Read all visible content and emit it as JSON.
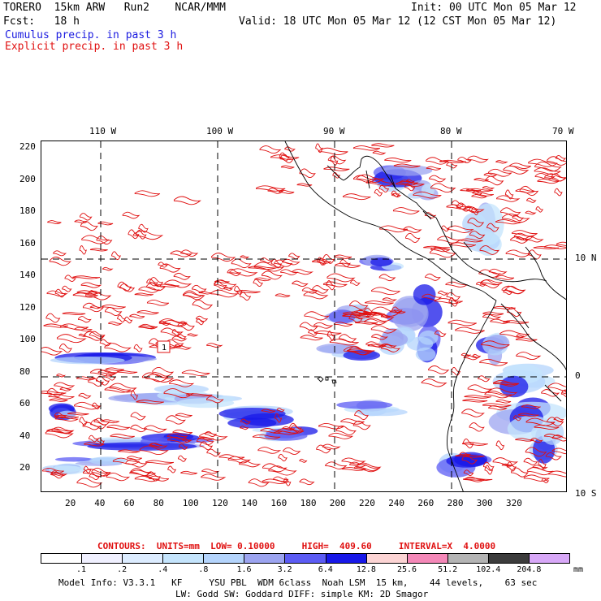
{
  "header": {
    "model_line": "TORERO  15km ARW   Run2    NCAR/MMM",
    "init_line": "Init: 00 UTC Mon 05 Mar 12",
    "fcst_line": "Fcst:   18 h",
    "valid_line": "Valid: 18 UTC Mon 05 Mar 12 (12 CST Mon 05 Mar 12)",
    "cumulus_label": "Cumulus precip. in past 3 h",
    "explicit_label": "Explicit precip. in past 3 h"
  },
  "colors": {
    "cumulus": "#1c1ce0",
    "explicit": "#e01010",
    "coast": "#000000",
    "grid": "#000000"
  },
  "map": {
    "top_lon_labels": [
      "110 W",
      "100 W",
      "90 W",
      "80 W",
      "70 W"
    ],
    "right_lat_labels": [
      "10 N",
      "0",
      "10 S"
    ],
    "y_ticks": [
      "220",
      "200",
      "180",
      "160",
      "140",
      "120",
      "100",
      "80",
      "60",
      "40",
      "20"
    ],
    "x_ticks": [
      "20",
      "40",
      "60",
      "80",
      "100",
      "120",
      "140",
      "160",
      "180",
      "200",
      "220",
      "240",
      "260",
      "280",
      "300",
      "320"
    ],
    "box_label": "1"
  },
  "contour_info": {
    "label": "CONTOURS:  UNITS=mm  LOW= 0.10000     HIGH=  409.60     INTERVAL=X  4.0000"
  },
  "legend": {
    "values": [
      ".1",
      ".2",
      ".4",
      ".8",
      "1.6",
      "3.2",
      "6.4",
      "12.8",
      "25.6",
      "51.2",
      "102.4",
      "204.8"
    ],
    "unit": "mm",
    "colors": [
      "#ffffff",
      "#f0f0ff",
      "#dcecff",
      "#c4e4fc",
      "#b4d4fc",
      "#9ca4f0",
      "#5c5cf4",
      "#1818e8",
      "#fcd4d4",
      "#f488b8",
      "#b4b4b4",
      "#3c3c3c",
      "#d8a8f8"
    ]
  },
  "footer": {
    "line1": "Model Info: V3.3.1   KF     YSU PBL  WDM 6class  Noah LSM  15 km,    44 levels,    63 sec",
    "line2": "LW: Godd SW: Goddard DIFF: simple KM: 2D Smagor"
  }
}
